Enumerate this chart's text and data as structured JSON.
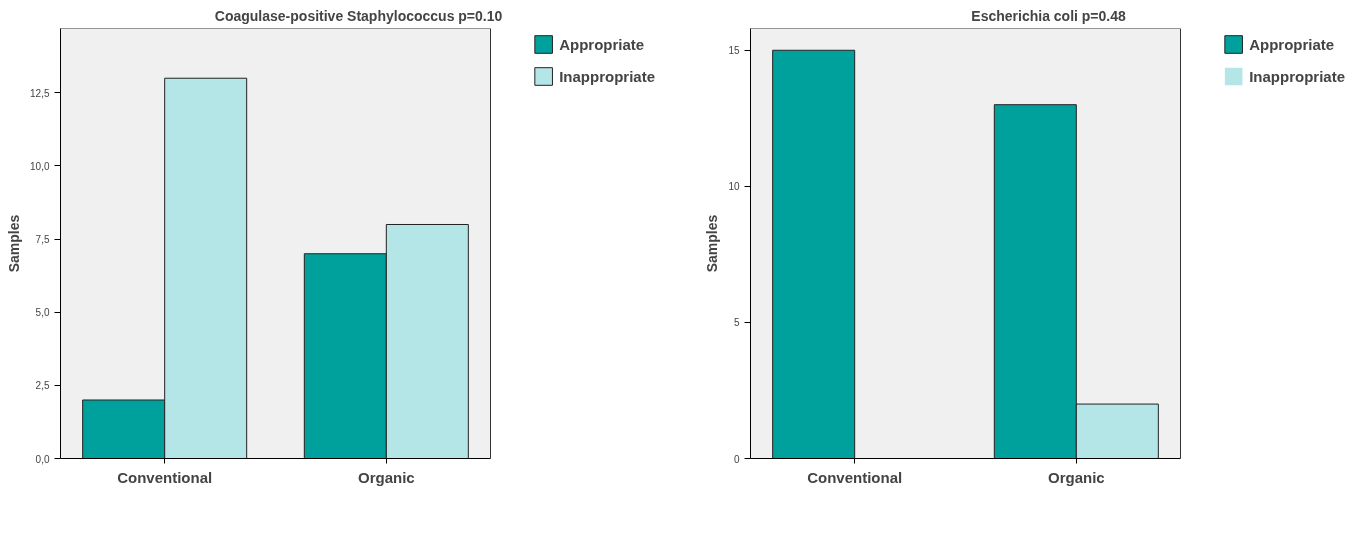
{
  "chart_data": [
    {
      "type": "bar",
      "title": "Coagulase-positive Staphylococcus  p=0.10",
      "ylabel": "Samples",
      "categories": [
        "Conventional",
        "Organic"
      ],
      "series": [
        {
          "name": "Appropriate",
          "color": "#00a19c",
          "values": [
            2,
            7
          ]
        },
        {
          "name": "Inappropriate",
          "color": "#b5e6e7",
          "values": [
            13,
            8
          ]
        }
      ],
      "ylim": [
        0,
        14.7
      ],
      "yticks": [
        {
          "value": 0,
          "label": "0,0"
        },
        {
          "value": 2.5,
          "label": "2,5"
        },
        {
          "value": 5,
          "label": "5,0"
        },
        {
          "value": 7.5,
          "label": "7,5"
        },
        {
          "value": 10,
          "label": "10,0"
        },
        {
          "value": 12.5,
          "label": "12,5"
        }
      ],
      "grid": false,
      "legend": "top right"
    },
    {
      "type": "bar",
      "title": "Escherichia coli  p=0.48",
      "ylabel": "Samples",
      "categories": [
        "Conventional",
        "Organic"
      ],
      "series": [
        {
          "name": "Appropriate",
          "color": "#00a19c",
          "values": [
            15,
            13
          ]
        },
        {
          "name": "Inappropriate",
          "color": "#b5e6e7",
          "values": [
            0,
            2
          ]
        }
      ],
      "ylim": [
        0,
        15.8
      ],
      "yticks": [
        0,
        5,
        10,
        15
      ],
      "grid": false,
      "legend": "top right"
    }
  ]
}
